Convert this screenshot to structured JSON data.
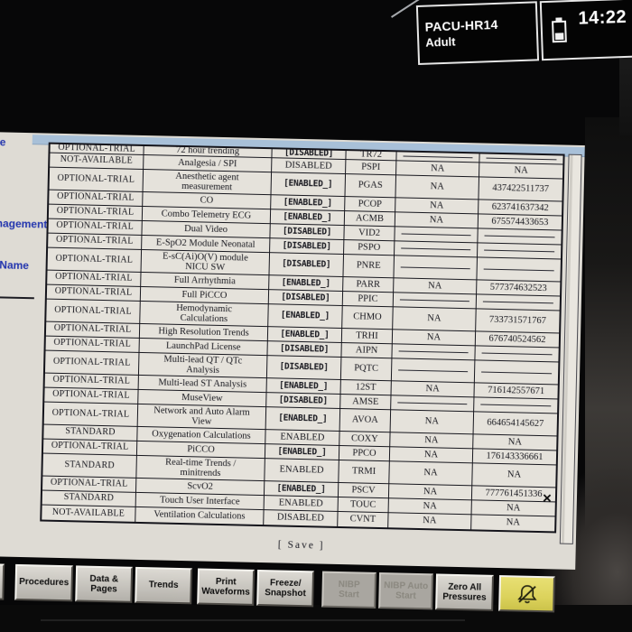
{
  "header": {
    "unit": "PACU-HR14",
    "patient_type": "Adult",
    "time": "14:22",
    "battery_icon": "battery-icon"
  },
  "sidebar": {
    "fragments": [
      {
        "text": "e"
      },
      {
        "text": "nagement"
      },
      {
        "text": "d Name"
      }
    ]
  },
  "license_table": {
    "rows": [
      {
        "status": "OPTIONAL-TRIAL",
        "name": "72 hour trending",
        "state": "[DISABLED]",
        "code": "TR72",
        "serial_a": "",
        "serial_b": "",
        "partial": true
      },
      {
        "status": "NOT-AVAILABLE",
        "name": "Analgesia / SPI",
        "state": "DISABLED",
        "code": "PSPI",
        "serial_a": "NA",
        "serial_b": "NA"
      },
      {
        "status": "OPTIONAL-TRIAL",
        "name": "Anesthetic agent\nmeasurement",
        "state": "[ENABLED_]",
        "code": "PGAS",
        "serial_a": "NA",
        "serial_b": "437422511737"
      },
      {
        "status": "OPTIONAL-TRIAL",
        "name": "CO",
        "state": "[ENABLED_]",
        "code": "PCOP",
        "serial_a": "NA",
        "serial_b": "623741637342"
      },
      {
        "status": "OPTIONAL-TRIAL",
        "name": "Combo Telemetry ECG",
        "state": "[ENABLED_]",
        "code": "ACMB",
        "serial_a": "NA",
        "serial_b": "675574433653"
      },
      {
        "status": "OPTIONAL-TRIAL",
        "name": "Dual Video",
        "state": "[DISABLED]",
        "code": "VID2",
        "serial_a": "",
        "serial_b": ""
      },
      {
        "status": "OPTIONAL-TRIAL",
        "name": "E-SpO2 Module Neonatal",
        "state": "[DISABLED]",
        "code": "PSPO",
        "serial_a": "",
        "serial_b": ""
      },
      {
        "status": "OPTIONAL-TRIAL",
        "name": "E-sC(Ai)O(V) module\nNICU SW",
        "state": "[DISABLED]",
        "code": "PNRE",
        "serial_a": "",
        "serial_b": ""
      },
      {
        "status": "OPTIONAL-TRIAL",
        "name": "Full Arrhythmia",
        "state": "[ENABLED_]",
        "code": "PARR",
        "serial_a": "NA",
        "serial_b": "577374632523"
      },
      {
        "status": "OPTIONAL-TRIAL",
        "name": "Full PiCCO",
        "state": "[DISABLED]",
        "code": "PPIC",
        "serial_a": "",
        "serial_b": ""
      },
      {
        "status": "OPTIONAL-TRIAL",
        "name": "Hemodynamic\nCalculations",
        "state": "[ENABLED_]",
        "code": "CHMO",
        "serial_a": "NA",
        "serial_b": "733731571767"
      },
      {
        "status": "OPTIONAL-TRIAL",
        "name": "High Resolution Trends",
        "state": "[ENABLED_]",
        "code": "TRHI",
        "serial_a": "NA",
        "serial_b": "676740524562"
      },
      {
        "status": "OPTIONAL-TRIAL",
        "name": "LaunchPad License",
        "state": "[DISABLED]",
        "code": "AIPN",
        "serial_a": "",
        "serial_b": ""
      },
      {
        "status": "OPTIONAL-TRIAL",
        "name": "Multi-lead QT / QTc\nAnalysis",
        "state": "[DISABLED]",
        "code": "PQTC",
        "serial_a": "",
        "serial_b": ""
      },
      {
        "status": "OPTIONAL-TRIAL",
        "name": "Multi-lead ST Analysis",
        "state": "[ENABLED_]",
        "code": "12ST",
        "serial_a": "NA",
        "serial_b": "716142557671"
      },
      {
        "status": "OPTIONAL-TRIAL",
        "name": "MuseView",
        "state": "[DISABLED]",
        "code": "AMSE",
        "serial_a": "",
        "serial_b": ""
      },
      {
        "status": "OPTIONAL-TRIAL",
        "name": "Network and Auto Alarm\nView",
        "state": "[ENABLED_]",
        "code": "AVOA",
        "serial_a": "NA",
        "serial_b": "664654145627"
      },
      {
        "status": "STANDARD",
        "name": "Oxygenation Calculations",
        "state": "ENABLED",
        "code": "COXY",
        "serial_a": "NA",
        "serial_b": "NA"
      },
      {
        "status": "OPTIONAL-TRIAL",
        "name": "PiCCO",
        "state": "[ENABLED_]",
        "code": "PPCO",
        "serial_a": "NA",
        "serial_b": "176143336661"
      },
      {
        "status": "STANDARD",
        "name": "Real-time Trends /\nminitrends",
        "state": "ENABLED",
        "code": "TRMI",
        "serial_a": "NA",
        "serial_b": "NA"
      },
      {
        "status": "OPTIONAL-TRIAL",
        "name": "ScvO2",
        "state": "[ENABLED_]",
        "code": "PSCV",
        "serial_a": "NA",
        "serial_b": "777761451336"
      },
      {
        "status": "STANDARD",
        "name": "Touch User Interface",
        "state": "ENABLED",
        "code": "TOUC",
        "serial_a": "NA",
        "serial_b": "NA"
      },
      {
        "status": "NOT-AVAILABLE",
        "name": "Ventilation Calculations",
        "state": "DISABLED",
        "code": "CVNT",
        "serial_a": "NA",
        "serial_b": "NA"
      }
    ]
  },
  "save_button_label": "[ Save ]",
  "close_icon_glyph": "×",
  "bottom_bar": {
    "buttons": [
      {
        "name": "partial-menu-button",
        "lines": [
          "r",
          "s"
        ],
        "state": "partial"
      },
      {
        "name": "procedures-button",
        "lines": [
          "Procedures"
        ]
      },
      {
        "name": "data-pages-button",
        "lines": [
          "Data &",
          "Pages"
        ]
      },
      {
        "name": "trends-button",
        "lines": [
          "Trends"
        ]
      },
      {
        "name": "print-waveforms-button",
        "lines": [
          "Print",
          "Waveforms"
        ]
      },
      {
        "name": "freeze-snapshot-button",
        "lines": [
          "Freeze/",
          "Snapshot"
        ]
      },
      {
        "name": "nibp-start-button",
        "lines": [
          "NIBP",
          "Start"
        ],
        "state": "disabled"
      },
      {
        "name": "nibp-auto-start-button",
        "lines": [
          "NIBP Auto",
          "Start"
        ],
        "state": "disabled"
      },
      {
        "name": "zero-all-pressures-button",
        "lines": [
          "Zero All",
          "Pressures"
        ]
      },
      {
        "name": "alarm-silence-button",
        "icon": "alarm-bell-icon",
        "state": "highlight"
      }
    ]
  },
  "colors": {
    "panel_bg": "#dedbd3",
    "top_strip_blue": "#a6c0da",
    "sidebar_link_blue": "#2034b8",
    "table_border": "#14141c",
    "button_face": "#c6c3bc",
    "alarm_button_yellow": "#ddd352",
    "header_text": "#ffffff"
  }
}
